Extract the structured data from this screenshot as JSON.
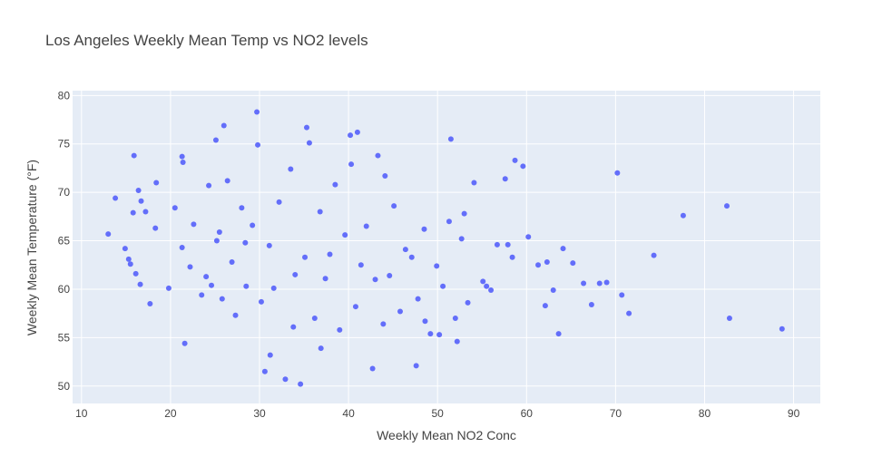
{
  "chart_data": {
    "type": "scatter",
    "title": "Los Angeles Weekly Mean Temp vs NO2 levels",
    "xlabel": "Weekly Mean NO2 Conc",
    "ylabel": "Weekly Mean Temperature (°F)",
    "xlim": [
      9,
      93
    ],
    "ylim": [
      48.2,
      80.5
    ],
    "xticks": [
      "10",
      "20",
      "30",
      "40",
      "50",
      "60",
      "70",
      "80",
      "90"
    ],
    "yticks": [
      "50",
      "55",
      "60",
      "65",
      "70",
      "75",
      "80"
    ],
    "grid": true,
    "legend": "none",
    "colors": {
      "marker": "#636efa",
      "plot_bg": "#e5ecf6",
      "grid": "#ffffff",
      "text": "#444444"
    },
    "x": [
      13.0,
      13.8,
      14.9,
      15.3,
      15.5,
      15.8,
      16.1,
      16.6,
      16.7,
      17.2,
      17.7,
      18.3,
      18.4,
      19.8,
      20.5,
      21.3,
      21.4,
      21.6,
      22.2,
      22.6,
      23.5,
      24.0,
      24.3,
      24.6,
      25.1,
      25.5,
      25.8,
      26.4,
      26.9,
      27.3,
      28.0,
      28.5,
      29.2,
      29.7,
      30.2,
      30.6,
      31.1,
      31.6,
      32.2,
      32.9,
      33.5,
      34.0,
      34.6,
      35.1,
      35.6,
      36.2,
      36.8,
      37.4,
      37.9,
      38.5,
      39.0,
      39.6,
      40.3,
      40.8,
      41.4,
      42.0,
      42.7,
      43.3,
      43.9,
      44.6,
      45.1,
      45.8,
      46.4,
      47.1,
      47.8,
      48.5,
      49.2,
      49.9,
      50.6,
      51.3,
      52.0,
      52.7,
      53.4,
      54.1,
      55.1,
      56.0,
      56.7,
      57.6,
      58.4,
      59.6,
      60.2,
      61.3,
      62.1,
      63.0,
      64.1,
      65.2,
      66.4,
      67.3,
      68.2,
      69.0,
      70.2,
      70.7,
      71.5,
      74.3,
      77.6,
      82.5,
      82.8,
      88.7,
      41.0,
      51.5,
      26.0,
      29.8,
      35.3,
      15.9,
      21.3,
      40.2,
      55.5,
      58.7,
      63.6,
      31.2,
      33.8,
      47.6,
      57.9,
      62.3,
      52.2,
      25.2,
      48.6,
      44.1,
      16.4,
      28.4,
      36.9,
      43.0,
      50.2,
      53.0
    ],
    "y": [
      65.7,
      69.4,
      64.2,
      63.1,
      62.6,
      67.9,
      61.6,
      60.5,
      69.1,
      68.0,
      58.5,
      66.3,
      71.0,
      60.1,
      68.4,
      64.3,
      73.1,
      54.4,
      62.3,
      66.7,
      59.4,
      61.3,
      70.7,
      60.4,
      75.4,
      65.9,
      59.0,
      71.2,
      62.8,
      57.3,
      68.4,
      60.3,
      66.6,
      78.3,
      58.7,
      51.5,
      64.5,
      60.1,
      69.0,
      50.7,
      72.4,
      61.5,
      50.2,
      63.3,
      75.1,
      57.0,
      68.0,
      61.1,
      63.6,
      70.8,
      55.8,
      65.6,
      72.9,
      58.2,
      62.5,
      66.5,
      51.8,
      73.8,
      56.4,
      61.4,
      68.6,
      57.7,
      64.1,
      63.3,
      59.0,
      66.2,
      55.4,
      62.4,
      60.3,
      67.0,
      57.0,
      65.2,
      58.6,
      71.0,
      60.8,
      59.9,
      64.6,
      71.4,
      63.3,
      72.7,
      65.4,
      62.5,
      58.3,
      59.9,
      64.2,
      62.7,
      60.6,
      58.4,
      60.6,
      60.7,
      72.0,
      59.4,
      57.5,
      63.5,
      67.6,
      68.6,
      57.0,
      55.9,
      76.2,
      75.5,
      76.9,
      74.9,
      76.7,
      73.8,
      73.7,
      75.9,
      60.3,
      73.3,
      55.4,
      53.2,
      56.1,
      52.1,
      64.6,
      62.8,
      54.6,
      65.0,
      56.7,
      71.7,
      70.2,
      64.8,
      53.9,
      61.0,
      55.3,
      67.8
    ]
  }
}
